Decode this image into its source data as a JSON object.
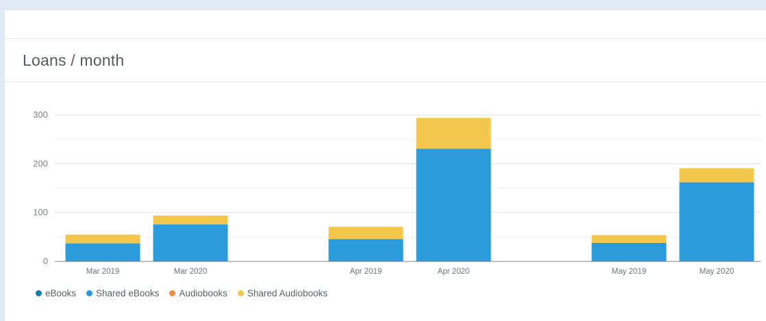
{
  "panel": {
    "title": "Loans / month"
  },
  "chart_data": {
    "type": "bar",
    "stacked": true,
    "title": "Loans / month",
    "xlabel": "",
    "ylabel": "",
    "ylim": [
      0,
      300
    ],
    "yticks": [
      0,
      100,
      200,
      300
    ],
    "grid": true,
    "legend_position": "bottom-left",
    "categories": [
      "Mar 2019",
      "Mar 2020",
      "Apr 2019",
      "Apr 2020",
      "May 2019",
      "May 2020"
    ],
    "series": [
      {
        "name": "eBooks",
        "color": "#137ba8",
        "values": [
          0,
          0,
          0,
          0,
          0,
          0
        ]
      },
      {
        "name": "Shared eBooks",
        "color": "#2b9bdb",
        "values": [
          37,
          76,
          46,
          231,
          38,
          162
        ]
      },
      {
        "name": "Audiobooks",
        "color": "#f28f3b",
        "values": [
          0,
          0,
          0,
          0,
          0,
          0
        ]
      },
      {
        "name": "Shared Audiobooks",
        "color": "#f3c74b",
        "values": [
          18,
          18,
          25,
          63,
          16,
          29
        ]
      }
    ]
  }
}
